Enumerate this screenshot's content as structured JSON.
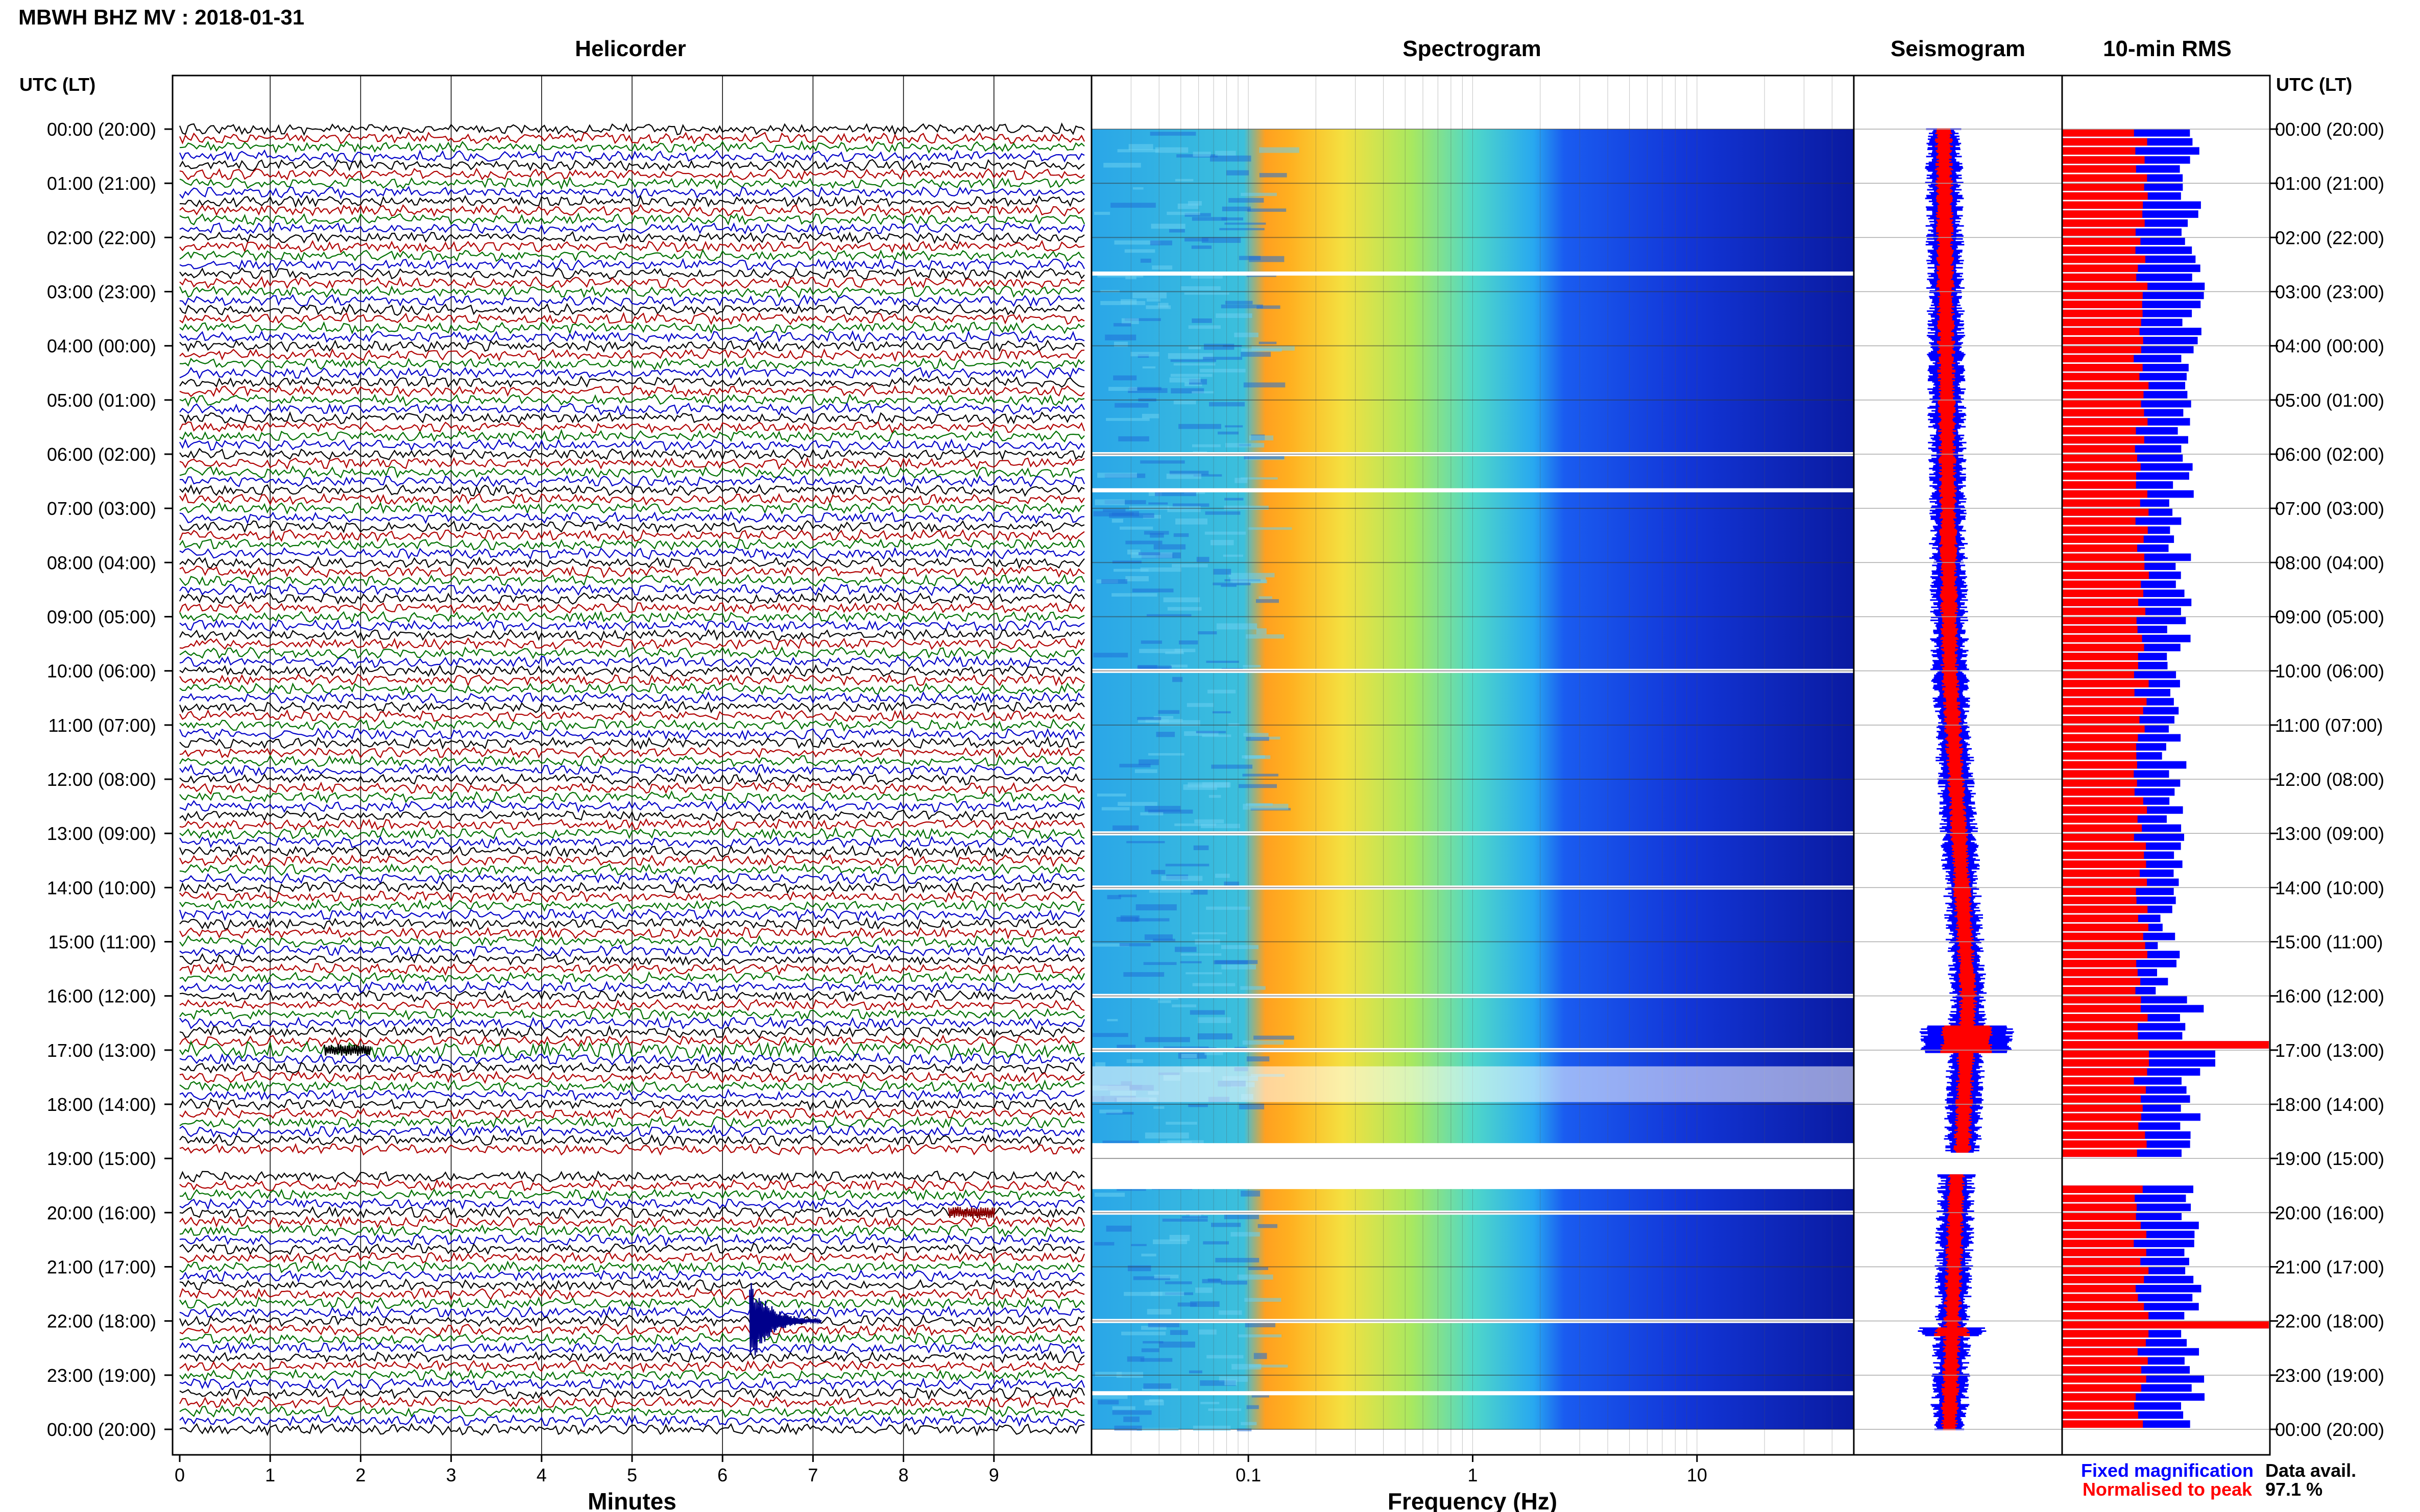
{
  "header": {
    "title": "MBWH BHZ MV : 2018-01-31",
    "utc_label": "UTC (LT)",
    "utc_label_right": "UTC (LT)"
  },
  "panels": {
    "helicorder": "Helicorder",
    "spectrogram": "Spectrogram",
    "seismogram": "Seismogram",
    "rms": "10-min RMS"
  },
  "time_labels": [
    "00:00 (20:00)",
    "01:00 (21:00)",
    "02:00 (22:00)",
    "03:00 (23:00)",
    "04:00 (00:00)",
    "05:00 (01:00)",
    "06:00 (02:00)",
    "07:00 (03:00)",
    "08:00 (04:00)",
    "09:00 (05:00)",
    "10:00 (06:00)",
    "11:00 (07:00)",
    "12:00 (08:00)",
    "13:00 (09:00)",
    "14:00 (10:00)",
    "15:00 (11:00)",
    "16:00 (12:00)",
    "17:00 (13:00)",
    "18:00 (14:00)",
    "19:00 (15:00)",
    "20:00 (16:00)",
    "21:00 (17:00)",
    "22:00 (18:00)",
    "23:00 (19:00)",
    "00:00 (20:00)"
  ],
  "chart_data": [
    {
      "type": "line",
      "name": "helicorder",
      "xlabel": "Minutes",
      "xticks": [
        "0",
        "1",
        "2",
        "3",
        "4",
        "5",
        "6",
        "7",
        "8",
        "9"
      ],
      "xlim": [
        0,
        10
      ],
      "trace_colors": [
        "#000000",
        "#b00000",
        "#007000",
        "#0000c8"
      ],
      "rows_per_hour": 6,
      "gap_minutes_of_day": [
        1140,
        1150
      ],
      "events": [
        {
          "time_utc": "22:00",
          "minute": 6.3,
          "color": "#00008b"
        },
        {
          "time_utc": "20:00",
          "minute": 8.5,
          "color": "#8b0000"
        },
        {
          "time_utc": "17:00",
          "minute": 1.6,
          "color": "#000000"
        }
      ]
    },
    {
      "type": "heatmap",
      "name": "spectrogram",
      "xlabel": "Frequency (Hz)",
      "xticks": [
        "0.1",
        "1",
        "10"
      ],
      "xscale": "log",
      "xlim": [
        0.02,
        50
      ],
      "gap_hours": [
        "02:40",
        "06:00",
        "06:40",
        "10:00",
        "13:00",
        "14:00",
        "16:00",
        "17:00",
        "19:00",
        "20:00",
        "22:00",
        "23:20"
      ]
    },
    {
      "type": "line",
      "name": "seismogram",
      "series": [
        {
          "name": "Fixed magnification",
          "color": "#0000ff"
        },
        {
          "name": "Normalised to peak",
          "color": "#ff0000"
        }
      ]
    },
    {
      "type": "bar",
      "name": "10-min RMS",
      "orientation": "horizontal",
      "series": [
        {
          "name": "Fixed magnification",
          "color": "#0000ff"
        },
        {
          "name": "Normalised to peak",
          "color": "#ff0000"
        }
      ],
      "peaks_utc": [
        "16:50",
        "22:00"
      ]
    }
  ],
  "legend": {
    "fixed": "Fixed magnification",
    "normalised": "Normalised to peak",
    "fixed_color": "#0000ff",
    "normalised_color": "#ff0000"
  },
  "data_avail": {
    "label": "Data avail.",
    "value": "97.1 %"
  }
}
